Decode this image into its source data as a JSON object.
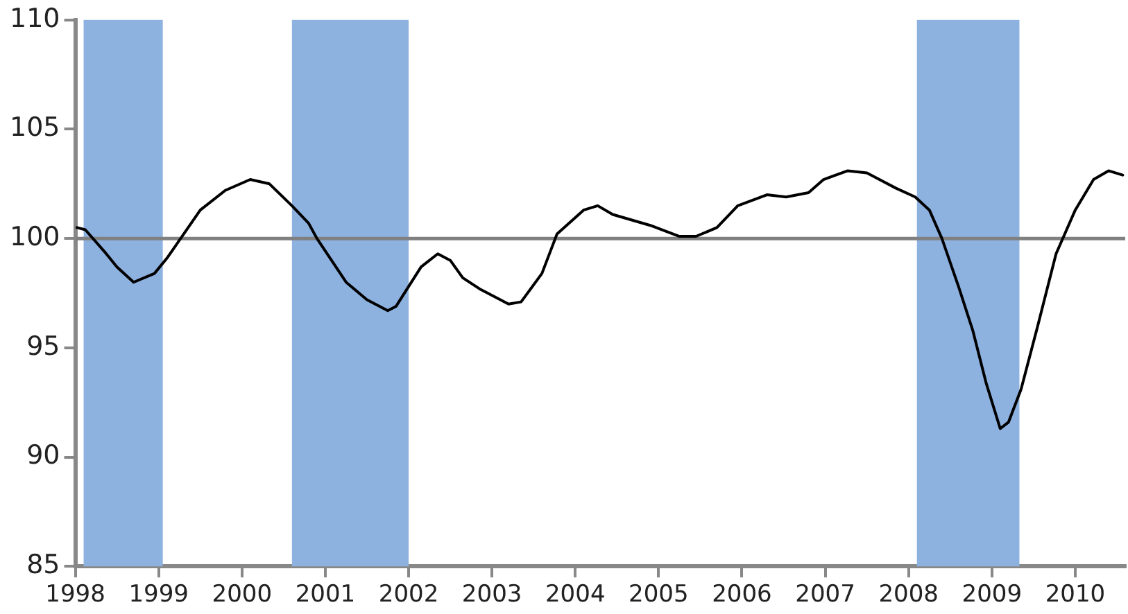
{
  "chart_data": {
    "type": "line",
    "xlim": [
      1998,
      2010.6
    ],
    "xticks": [
      1998,
      1999,
      2000,
      2001,
      2002,
      2003,
      2004,
      2005,
      2006,
      2007,
      2008,
      2009,
      2010
    ],
    "ylim": [
      85,
      110
    ],
    "yticks": [
      85,
      90,
      95,
      100,
      105,
      110
    ],
    "grid": false,
    "legend": false,
    "marker": "none",
    "line_style": "solid",
    "series": [
      {
        "color": "#000000",
        "x": [
          1998.02,
          1998.12,
          1998.35,
          1998.5,
          1998.7,
          1998.95,
          1999.1,
          1999.3,
          1999.5,
          1999.8,
          2000.1,
          2000.33,
          2000.6,
          2000.8,
          2000.9,
          2001.25,
          2001.5,
          2001.75,
          2001.85,
          2002.15,
          2002.35,
          2002.5,
          2002.65,
          2002.85,
          2003.2,
          2003.35,
          2003.6,
          2003.78,
          2004.1,
          2004.27,
          2004.45,
          2004.9,
          2005.25,
          2005.45,
          2005.7,
          2005.95,
          2006.3,
          2006.53,
          2006.8,
          2006.98,
          2007.27,
          2007.5,
          2007.85,
          2008.08,
          2008.25,
          2008.4,
          2008.6,
          2008.77,
          2008.93,
          2009.1,
          2009.2,
          2009.35,
          2009.55,
          2009.77,
          2010.0,
          2010.22,
          2010.4,
          2010.57
        ],
        "values": [
          100.5,
          100.4,
          99.4,
          98.7,
          98.0,
          98.4,
          99.1,
          100.2,
          101.3,
          102.2,
          102.7,
          102.5,
          101.5,
          100.7,
          100.0,
          98.0,
          97.2,
          96.7,
          96.9,
          98.7,
          99.3,
          99.0,
          98.2,
          97.7,
          97.0,
          97.1,
          98.4,
          100.2,
          101.3,
          101.5,
          101.1,
          100.6,
          100.1,
          100.1,
          100.5,
          101.5,
          102.0,
          101.9,
          102.1,
          102.7,
          103.1,
          103.0,
          102.3,
          101.9,
          101.3,
          100.0,
          97.8,
          95.8,
          93.4,
          91.3,
          91.6,
          93.1,
          96.0,
          99.3,
          101.3,
          102.7,
          103.1,
          102.9
        ]
      }
    ],
    "ref_lines": [
      {
        "axis": "y",
        "value": 100,
        "color": "#808080"
      }
    ],
    "bands": [
      {
        "axis": "x",
        "from": 1998.1,
        "to": 1999.05,
        "color": "#8eb2e0"
      },
      {
        "axis": "x",
        "from": 2000.6,
        "to": 2002.0,
        "color": "#8eb2e0"
      },
      {
        "axis": "x",
        "from": 2008.1,
        "to": 2009.33,
        "color": "#8eb2e0"
      }
    ]
  }
}
